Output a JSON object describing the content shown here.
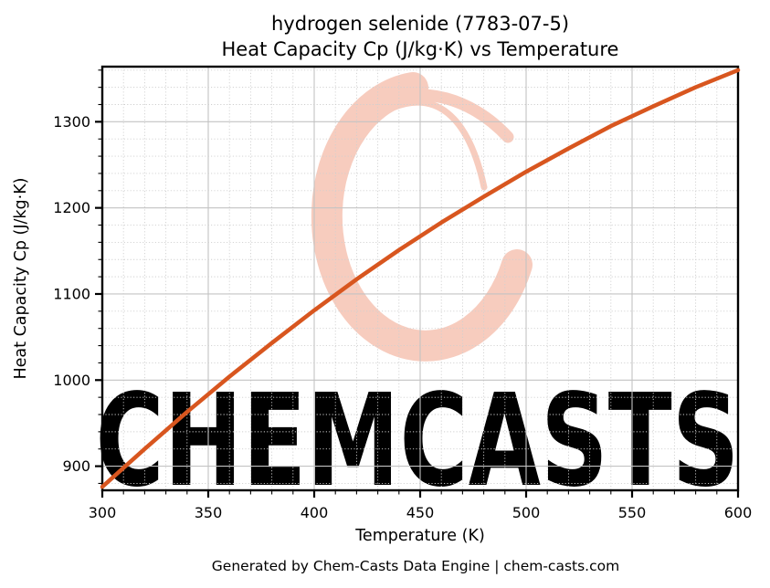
{
  "watermark": {
    "text": "CHEMCASTS",
    "logo": "brush-ring-logo"
  },
  "footer": {
    "text": "Generated by Chem-Casts Data Engine | chem-casts.com"
  },
  "theme": {
    "line_color": "#d8561f",
    "grid_major_color": "#c3c3c3",
    "grid_minor_color": "#cfcfcf",
    "spine_color": "#000000",
    "text_color": "#000000",
    "footer_text_color": "#4d4d4d",
    "watermark_color": "#f7ccbe",
    "background": "#ffffff"
  },
  "chart_data": {
    "type": "line",
    "title": "hydrogen selenide (7783-07-5) — Heat Capacity Cp (J/kg·K) vs Temperature",
    "title_line1": "hydrogen selenide (7783-07-5)",
    "title_line2": "Heat Capacity Cp (J/kg·K) vs Temperature",
    "xlabel": "Temperature (K)",
    "ylabel": "Heat Capacity Cp (J/kg·K)",
    "series": [
      {
        "name": "Cp",
        "x": [
          300,
          320,
          340,
          360,
          380,
          400,
          420,
          440,
          460,
          480,
          500,
          520,
          540,
          560,
          580,
          600
        ],
        "y": [
          876,
          920,
          963,
          1004,
          1043,
          1081,
          1117,
          1151,
          1183,
          1213,
          1242,
          1269,
          1295,
          1318,
          1340,
          1360
        ]
      }
    ],
    "xlim": [
      300,
      600
    ],
    "ylim": [
      872,
      1364
    ],
    "x_ticks": [
      300,
      350,
      400,
      450,
      500,
      550,
      600
    ],
    "y_ticks": [
      900,
      1000,
      1100,
      1200,
      1300
    ],
    "x_minor_step": 10,
    "y_minor_step": 20,
    "grid": true,
    "minor_grid": true,
    "legend": false
  }
}
